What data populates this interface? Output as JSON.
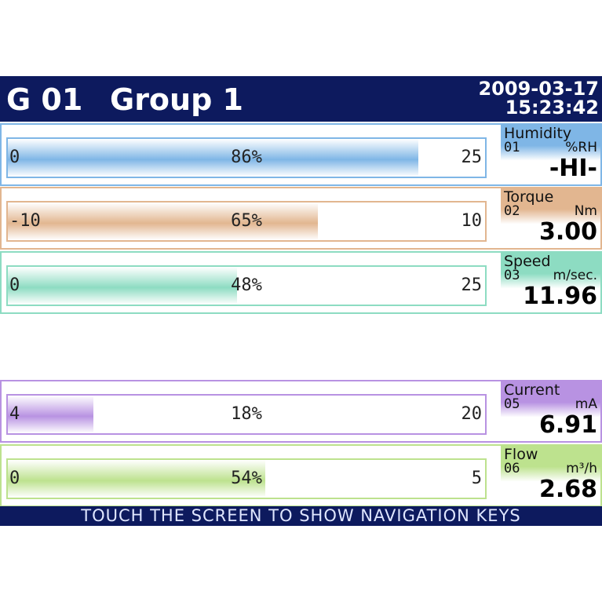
{
  "header": {
    "group_id": "G 01",
    "group_name": "Group 1",
    "date": "2009-03-17",
    "time": "15:23:42"
  },
  "rows": [
    {
      "min": "0",
      "max": "25",
      "percent": 86,
      "percent_label": "86%",
      "name": "Humidity",
      "channel": "01",
      "unit": "%RH",
      "reading": "-HI-",
      "color": "#7fb6e6"
    },
    {
      "min": "-10",
      "max": "10",
      "percent": 65,
      "percent_label": "65%",
      "name": "Torque",
      "channel": "02",
      "unit": "Nm",
      "reading": "3.00",
      "color": "#e2b690"
    },
    {
      "min": "0",
      "max": "25",
      "percent": 48,
      "percent_label": "48%",
      "name": "Speed",
      "channel": "03",
      "unit": "m/sec.",
      "reading": "11.96",
      "color": "#8ddcc2"
    },
    {
      "min": "4",
      "max": "20",
      "percent": 18,
      "percent_label": "18%",
      "name": "Current",
      "channel": "05",
      "unit": "mA",
      "reading": "6.91",
      "color": "#b892e2"
    },
    {
      "min": "0",
      "max": "5",
      "percent": 54,
      "percent_label": "54%",
      "name": "Flow",
      "channel": "06",
      "unit": "m³/h",
      "reading": "2.68",
      "color": "#bde28e"
    }
  ],
  "footer": "TOUCH THE SCREEN TO SHOW NAVIGATION KEYS"
}
